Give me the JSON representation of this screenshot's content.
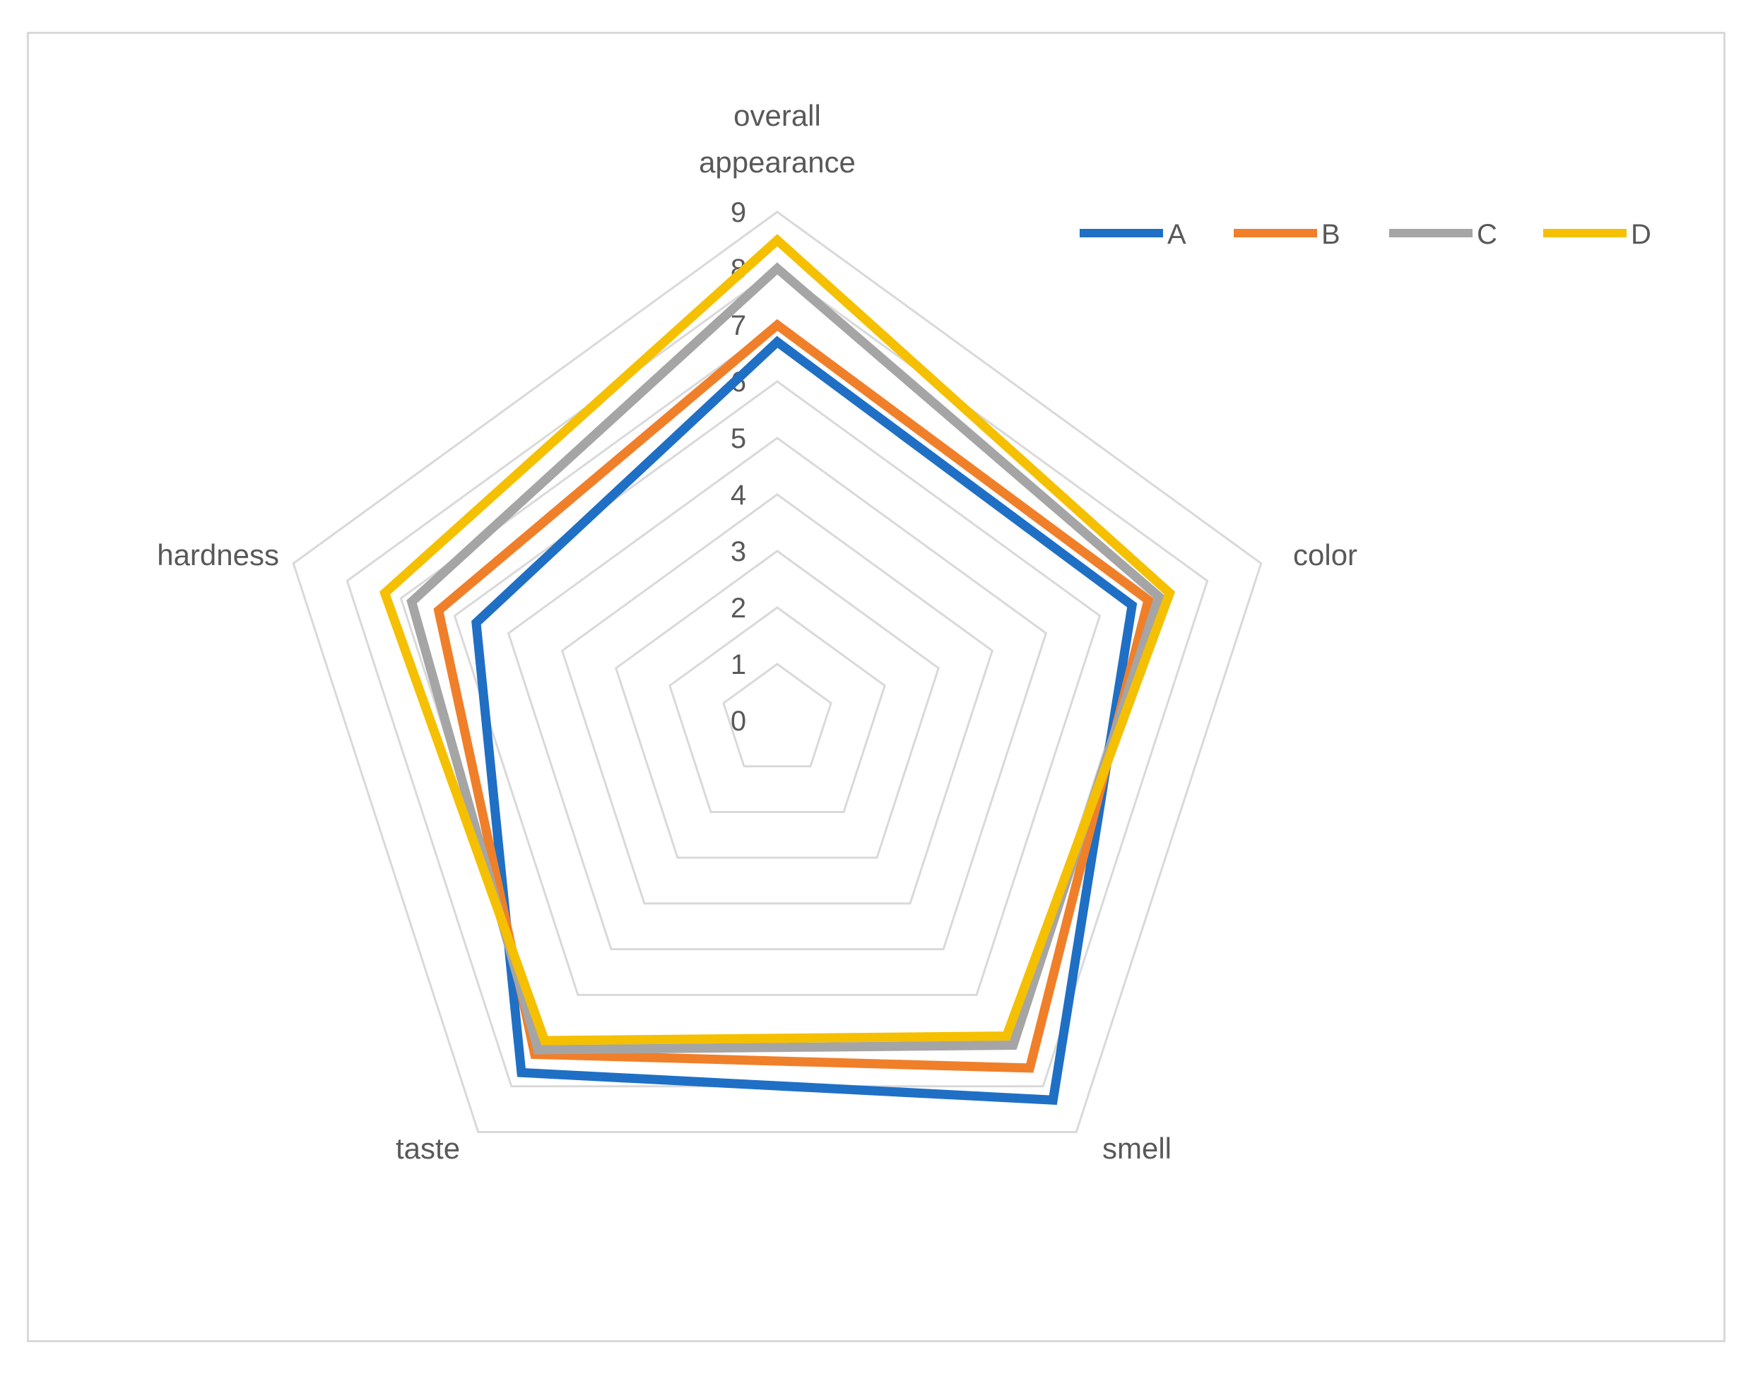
{
  "chart_data": {
    "type": "radar",
    "axes": [
      {
        "label_lines": [
          "overall",
          "appearance"
        ]
      },
      {
        "label_lines": [
          "color"
        ]
      },
      {
        "label_lines": [
          "smell"
        ]
      },
      {
        "label_lines": [
          "taste"
        ]
      },
      {
        "label_lines": [
          "hardness"
        ]
      }
    ],
    "ticks": [
      "0",
      "1",
      "2",
      "3",
      "4",
      "5",
      "6",
      "7",
      "8",
      "9"
    ],
    "rlim": [
      0,
      9
    ],
    "grid": true,
    "legend_position": "top-right",
    "series": [
      {
        "name": "A",
        "color": "#1f6fc5",
        "values": [
          6.7,
          6.6,
          8.3,
          7.7,
          5.6
        ]
      },
      {
        "name": "B",
        "color": "#f07f2a",
        "values": [
          7.0,
          6.9,
          7.6,
          7.3,
          6.3
        ]
      },
      {
        "name": "C",
        "color": "#a5a5a5",
        "values": [
          8.0,
          7.1,
          7.1,
          7.2,
          6.8
        ]
      },
      {
        "name": "D",
        "color": "#f5c000",
        "values": [
          8.5,
          7.3,
          6.9,
          7.0,
          7.3
        ]
      }
    ]
  }
}
